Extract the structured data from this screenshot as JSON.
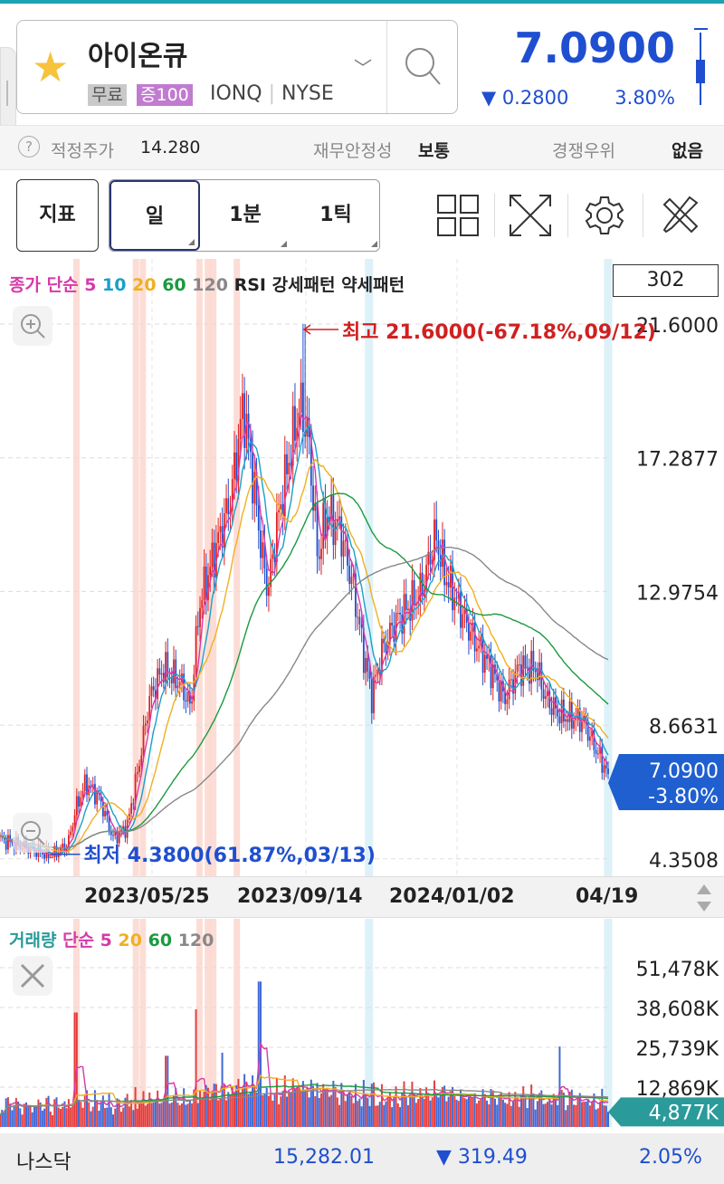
{
  "stock": {
    "name": "아이온큐",
    "badge_free": "무료",
    "badge_margin": "증100",
    "ticker": "IONQ",
    "exchange": "NYSE",
    "price": "7.0900",
    "change": "▼ 0.2800",
    "change_pct": "3.80%",
    "favorite": true
  },
  "info": {
    "fair_price_label": "적정주가",
    "fair_price": "14.280",
    "stability_label": "재무안정성",
    "stability": "보통",
    "advantage_label": "경쟁우위",
    "advantage": "없음"
  },
  "toolbar": {
    "indicator": "지표",
    "periods": [
      "일",
      "1분",
      "1틱"
    ],
    "selected_period": "일",
    "icons": [
      "layout-grid-icon",
      "fullscreen-icon",
      "gear-icon",
      "tools-icon"
    ]
  },
  "legend": {
    "close": "종가",
    "simple": "단순",
    "ma": [
      "5",
      "10",
      "20",
      "60",
      "120"
    ],
    "rsi": "RSI",
    "strong": "강세패턴",
    "weak": "약세패턴",
    "count": "302"
  },
  "vlegend": {
    "volume": "거래량",
    "simple": "단순",
    "ma": [
      "5",
      "20",
      "60",
      "120"
    ]
  },
  "colors": {
    "up": "#e02020",
    "down": "#1f4fd0",
    "ma5": "#d63aa8",
    "ma10": "#1aa0c8",
    "ma20": "#f0b020",
    "ma60": "#1a9a40",
    "ma120": "#888888",
    "strong_band": "#fbd5cc",
    "weak_band": "#d4eef8"
  },
  "chart_data": {
    "type": "candlestick",
    "candle_count": 302,
    "y_ticks": [
      "21.6000",
      "17.2877",
      "12.9754",
      "8.6631",
      "4.3508"
    ],
    "ylim": [
      4.3508,
      21.6
    ],
    "x_ticks": [
      "2023/05/25",
      "2023/09/14",
      "2024/01/02",
      "04/19"
    ],
    "x_range": [
      "2023-02-04",
      "2024-04-19"
    ],
    "high_label": "최고 21.6000(-67.18%,09/12)",
    "low_label": "최저 4.3800(61.87%,03/13)",
    "current_price": "7.0900",
    "current_pct": "-3.80%",
    "close_path": [
      [
        "2023-02-04",
        5.0
      ],
      [
        "2023-02-17",
        4.8
      ],
      [
        "2023-03-13",
        4.45
      ],
      [
        "2023-03-25",
        4.8
      ],
      [
        "2023-03-31",
        6.0
      ],
      [
        "2023-04-07",
        6.8
      ],
      [
        "2023-04-17",
        6.3
      ],
      [
        "2023-04-27",
        5.0
      ],
      [
        "2023-05-07",
        5.4
      ],
      [
        "2023-05-16",
        7.5
      ],
      [
        "2023-05-23",
        9.5
      ],
      [
        "2023-06-02",
        10.5
      ],
      [
        "2023-06-15",
        10.0
      ],
      [
        "2023-06-22",
        9.2
      ],
      [
        "2023-06-28",
        12.5
      ],
      [
        "2023-07-11",
        14.5
      ],
      [
        "2023-07-21",
        16.0
      ],
      [
        "2023-07-30",
        19.0
      ],
      [
        "2023-08-05",
        17.0
      ],
      [
        "2023-08-13",
        14.0
      ],
      [
        "2023-08-17",
        13.0
      ],
      [
        "2023-08-23",
        15.0
      ],
      [
        "2023-09-02",
        17.5
      ],
      [
        "2023-09-09",
        19.0
      ],
      [
        "2023-09-15",
        18.0
      ],
      [
        "2023-09-22",
        14.0
      ],
      [
        "2023-09-28",
        15.5
      ],
      [
        "2023-10-08",
        15.0
      ],
      [
        "2023-10-18",
        13.0
      ],
      [
        "2023-10-25",
        11.0
      ],
      [
        "2023-10-31",
        9.6
      ],
      [
        "2023-11-07",
        11.0
      ],
      [
        "2023-11-17",
        12.0
      ],
      [
        "2023-11-27",
        12.5
      ],
      [
        "2023-12-06",
        13.0
      ],
      [
        "2023-12-16",
        14.8
      ],
      [
        "2023-12-23",
        13.5
      ],
      [
        "2024-01-02",
        12.5
      ],
      [
        "2024-01-12",
        11.5
      ],
      [
        "2024-01-25",
        10.5
      ],
      [
        "2024-02-04",
        9.5
      ],
      [
        "2024-02-14",
        10.5
      ],
      [
        "2024-02-27",
        10.5
      ],
      [
        "2024-03-05",
        9.5
      ],
      [
        "2024-03-15",
        9.0
      ],
      [
        "2024-04-01",
        8.8
      ],
      [
        "2024-04-11",
        7.8
      ],
      [
        "2024-04-19",
        7.09
      ]
    ],
    "high_point": [
      "2023-09-12",
      21.6
    ],
    "low_point": [
      "2023-03-13",
      4.38
    ],
    "highlight_bands": [
      [
        "2023-03-31",
        "strong"
      ],
      [
        "2023-05-13",
        "strong"
      ],
      [
        "2023-05-18",
        "strong"
      ],
      [
        "2023-06-28",
        "strong"
      ],
      [
        "2023-07-04",
        "strong"
      ],
      [
        "2023-07-08",
        "strong"
      ],
      [
        "2023-07-25",
        "strong"
      ],
      [
        "2023-10-28",
        "weak"
      ],
      [
        "2024-04-18",
        "weak"
      ]
    ],
    "volume": {
      "y_ticks": [
        "51,478K",
        "38,608K",
        "25,739K",
        "12,869K"
      ],
      "current": "4,877K",
      "ylim_k": [
        0,
        51478
      ],
      "spikes_k": [
        [
          "2023-03-31",
          37000
        ],
        [
          "2023-06-26",
          38000
        ],
        [
          "2023-08-11",
          47000
        ],
        [
          "2024-03-15",
          26000
        ],
        [
          "2023-07-15",
          24000
        ],
        [
          "2023-06-05",
          23000
        ]
      ]
    }
  },
  "market": {
    "name": "나스닥",
    "value": "15,282.01",
    "change": "▼ 319.49",
    "pct": "2.05%"
  }
}
